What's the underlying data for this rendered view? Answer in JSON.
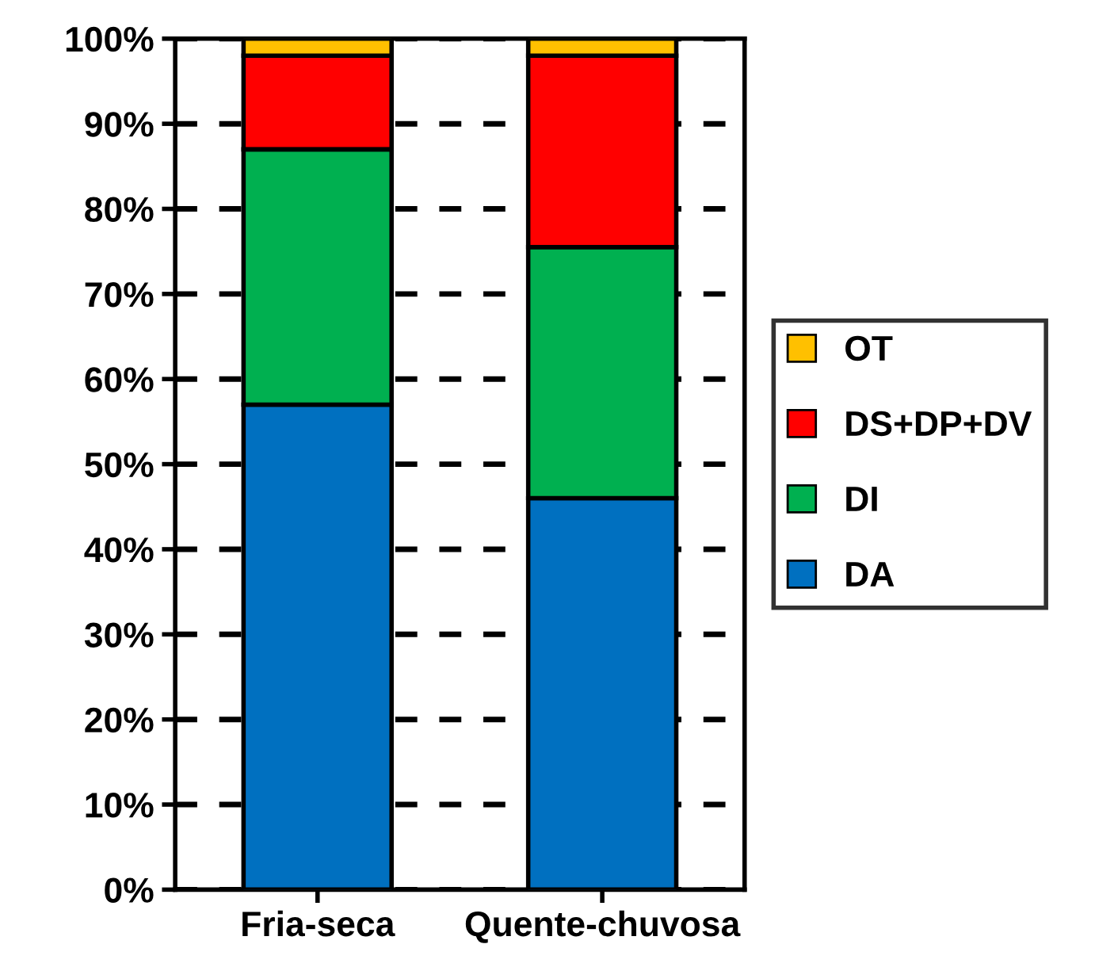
{
  "chart_data": {
    "type": "bar",
    "stacked": true,
    "categories": [
      "Fria-seca",
      "Quente-chuvosa"
    ],
    "series": [
      {
        "name": "DA",
        "color": "#0070c0",
        "values": [
          57,
          46
        ]
      },
      {
        "name": "DI",
        "color": "#00b050",
        "values": [
          30,
          29.5
        ]
      },
      {
        "name": "DS+DP+DV",
        "color": "#ff0000",
        "values": [
          11,
          22.5
        ]
      },
      {
        "name": "OT",
        "color": "#ffc000",
        "values": [
          2,
          2
        ]
      }
    ],
    "ylim": [
      0,
      100
    ],
    "yticks": [
      {
        "value": 0,
        "label": "0%"
      },
      {
        "value": 10,
        "label": "10%"
      },
      {
        "value": 20,
        "label": "20%"
      },
      {
        "value": 30,
        "label": "30%"
      },
      {
        "value": 40,
        "label": "40%"
      },
      {
        "value": 50,
        "label": "50%"
      },
      {
        "value": 60,
        "label": "60%"
      },
      {
        "value": 70,
        "label": "70%"
      },
      {
        "value": 80,
        "label": "80%"
      },
      {
        "value": 90,
        "label": "90%"
      },
      {
        "value": 100,
        "label": "100%"
      }
    ],
    "grid": "y",
    "legend": "right"
  }
}
